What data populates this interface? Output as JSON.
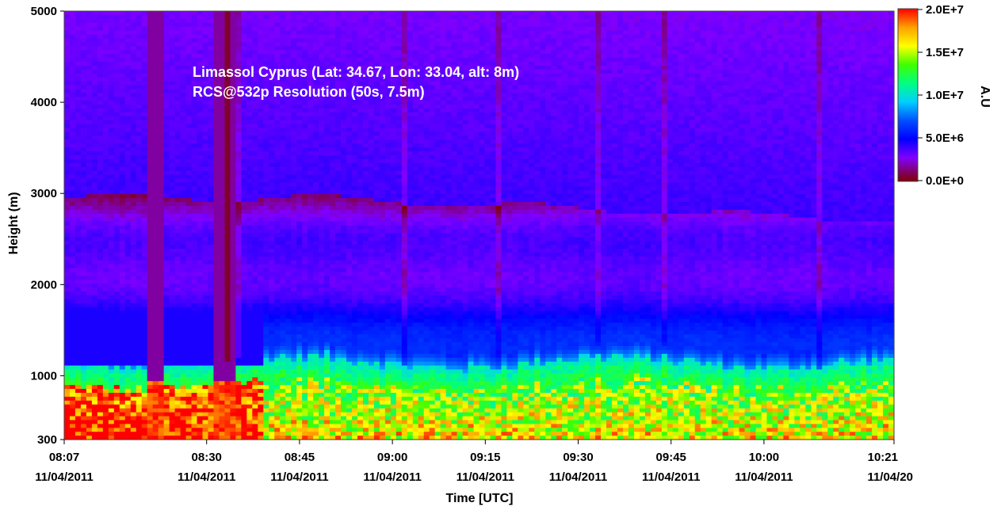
{
  "chart_data": {
    "type": "heatmap",
    "title": "Limassol Cyprus (Lat: 34.67, Lon: 33.04, alt: 8m)",
    "subtitle": "RCS@532p Resolution (50s, 7.5m)",
    "xlabel": "Time [UTC]",
    "ylabel": "Height (m)",
    "colorbar_label": "A.U",
    "y_range": [
      300,
      5000
    ],
    "x_range": [
      "08:07",
      "10:21"
    ],
    "x_start_minutes": 487,
    "x_end_minutes": 621,
    "y_ticks": [
      {
        "value": 300,
        "label": "300"
      },
      {
        "value": 1000,
        "label": "1000"
      },
      {
        "value": 2000,
        "label": "2000"
      },
      {
        "value": 3000,
        "label": "3000"
      },
      {
        "value": 4000,
        "label": "4000"
      },
      {
        "value": 5000,
        "label": "5000"
      }
    ],
    "x_ticks": [
      {
        "time": "08:07",
        "date": "11/04/2011",
        "minutes": 487
      },
      {
        "time": "08:30",
        "date": "11/04/2011",
        "minutes": 510
      },
      {
        "time": "08:45",
        "date": "11/04/2011",
        "minutes": 525
      },
      {
        "time": "09:00",
        "date": "11/04/2011",
        "minutes": 540
      },
      {
        "time": "09:15",
        "date": "11/04/2011",
        "minutes": 555
      },
      {
        "time": "09:30",
        "date": "11/04/2011",
        "minutes": 570
      },
      {
        "time": "09:45",
        "date": "11/04/2011",
        "minutes": 585
      },
      {
        "time": "10:00",
        "date": "11/04/2011",
        "minutes": 600
      },
      {
        "time": "10:21",
        "date": "11/04/20",
        "minutes": 621
      }
    ],
    "colorbar_range": [
      0,
      20000000
    ],
    "colorbar_ticks": [
      {
        "value": 0,
        "label": "0.0E+0"
      },
      {
        "value": 5000000,
        "label": "5.0E+6"
      },
      {
        "value": 10000000,
        "label": "1.0E+7"
      },
      {
        "value": 15000000,
        "label": "1.5E+7"
      },
      {
        "value": 20000000,
        "label": "2.0E+7"
      }
    ],
    "colormap": [
      "#800000",
      "#8000ff",
      "#0000ff",
      "#0050ff",
      "#00d0ff",
      "#00ff80",
      "#40ff00",
      "#ffff00",
      "#ffa000",
      "#ff0000"
    ],
    "features": {
      "boundary_layer_top_m": 1150,
      "elevated_layer_top_m": 2950,
      "elevated_layer_mid_m": 2550,
      "cloud_columns": [
        {
          "start": "08:20",
          "end": "08:23"
        },
        {
          "start": "08:31",
          "end": "08:35"
        }
      ]
    }
  }
}
